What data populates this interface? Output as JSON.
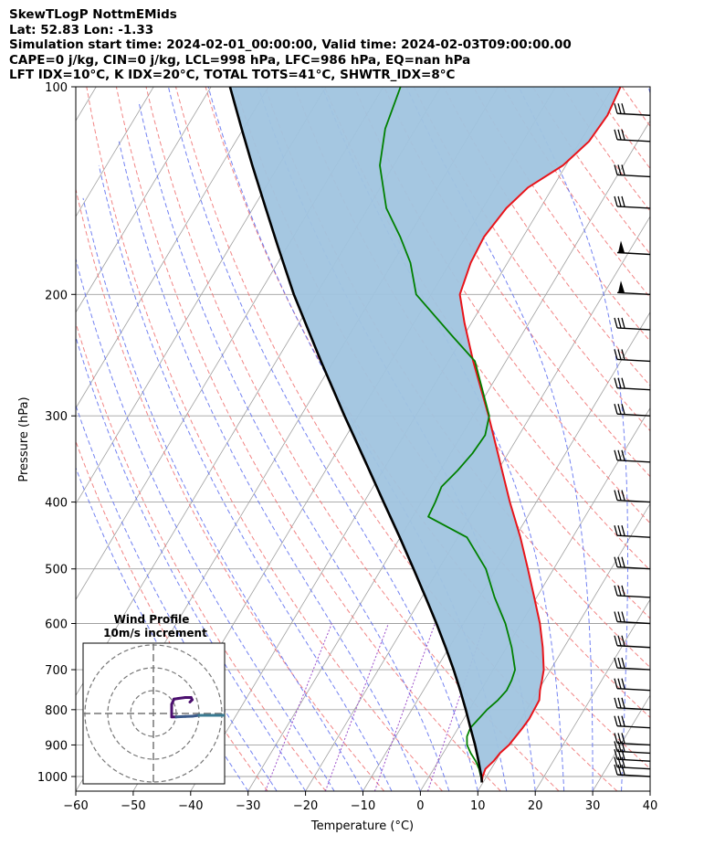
{
  "header": {
    "line1": "SkewTLogP NottmEMids",
    "line2": "Lat: 52.83   Lon: -1.33",
    "line3": "Simulation start time: 2024-02-01_00:00:00, Valid time: 2024-02-03T09:00:00.00",
    "line4": "CAPE=0 j/kg, CIN=0 j/kg, LCL=998 hPa, LFC=986 hPa, EQ=nan hPa",
    "line5": "LFT IDX=10°C, K IDX=20°C, TOTAL TOTS=41°C, SHWTR_IDX=8°C"
  },
  "colors": {
    "temperature": "#e8141a",
    "dewpoint": "#008000",
    "parcel": "#000000",
    "cape_fill": "#a0c4df",
    "dry_adiabat": "#f07070",
    "moist_adiabat": "#5a6cf0",
    "mixing_ratio": "#9b4dca",
    "isotherm": "#a0a0a0",
    "hodograph": "#4b0f6e"
  },
  "chart_data": [
    {
      "type": "line",
      "name": "skew-t",
      "xlabel": "Temperature (°C)",
      "ylabel": "Pressure (hPa)",
      "xlim": [
        -60,
        40
      ],
      "ylim": [
        1050,
        100
      ],
      "y_scale": "log",
      "x_ticks": [
        -60,
        -50,
        -40,
        -30,
        -20,
        -10,
        0,
        10,
        20,
        30,
        40
      ],
      "x_tick_labels": [
        "−60",
        "−50",
        "−40",
        "−30",
        "−20",
        "−10",
        "0",
        "10",
        "20",
        "30",
        "40"
      ],
      "y_ticks": [
        100,
        200,
        300,
        400,
        500,
        600,
        700,
        800,
        900,
        1000
      ],
      "grid": true,
      "series": [
        {
          "key": "temperature",
          "points": [
            [
              1020,
              9.8
            ],
            [
              1000,
              9.3
            ],
            [
              975,
              9.0
            ],
            [
              950,
              9.6
            ],
            [
              925,
              9.9
            ],
            [
              900,
              10.6
            ],
            [
              875,
              10.9
            ],
            [
              850,
              11.2
            ],
            [
              825,
              11.4
            ],
            [
              800,
              11.3
            ],
            [
              775,
              11.2
            ],
            [
              750,
              10.3
            ],
            [
              725,
              9.6
            ],
            [
              700,
              8.8
            ],
            [
              650,
              6.3
            ],
            [
              600,
              3.3
            ],
            [
              550,
              -0.4
            ],
            [
              500,
              -4.5
            ],
            [
              450,
              -9.1
            ],
            [
              400,
              -14.6
            ],
            [
              350,
              -20.5
            ],
            [
              300,
              -27.3
            ],
            [
              250,
              -35.7
            ],
            [
              220,
              -41.2
            ],
            [
              200,
              -45.0
            ],
            [
              180,
              -46.4
            ],
            [
              165,
              -46.8
            ],
            [
              150,
              -45.9
            ],
            [
              140,
              -44.3
            ],
            [
              130,
              -40.5
            ],
            [
              120,
              -38.5
            ],
            [
              110,
              -38.0
            ],
            [
              100,
              -38.7
            ]
          ]
        },
        {
          "key": "dewpoint",
          "points": [
            [
              1000,
              9.0
            ],
            [
              975,
              7.9
            ],
            [
              950,
              6.5
            ],
            [
              925,
              4.8
            ],
            [
              900,
              3.3
            ],
            [
              875,
              2.4
            ],
            [
              850,
              2.1
            ],
            [
              825,
              2.6
            ],
            [
              800,
              3.1
            ],
            [
              775,
              4.0
            ],
            [
              750,
              4.5
            ],
            [
              725,
              4.3
            ],
            [
              700,
              3.8
            ],
            [
              650,
              0.9
            ],
            [
              600,
              -2.7
            ],
            [
              550,
              -7.3
            ],
            [
              500,
              -11.8
            ],
            [
              450,
              -18.4
            ],
            [
              420,
              -27.3
            ],
            [
              400,
              -27.6
            ],
            [
              380,
              -28.1
            ],
            [
              360,
              -27.0
            ],
            [
              340,
              -26.2
            ],
            [
              320,
              -25.9
            ],
            [
              300,
              -27.2
            ],
            [
              250,
              -35.4
            ],
            [
              230,
              -41.9
            ],
            [
              200,
              -52.6
            ],
            [
              180,
              -56.9
            ],
            [
              165,
              -61.4
            ],
            [
              150,
              -66.8
            ],
            [
              130,
              -72.4
            ],
            [
              115,
              -75.3
            ],
            [
              100,
              -77.0
            ]
          ]
        },
        {
          "key": "parcel",
          "points": [
            [
              1020,
              9.8
            ],
            [
              1000,
              9.1
            ],
            [
              950,
              7.0
            ],
            [
              900,
              4.7
            ],
            [
              850,
              2.1
            ],
            [
              800,
              -0.6
            ],
            [
              750,
              -3.6
            ],
            [
              700,
              -6.9
            ],
            [
              650,
              -10.6
            ],
            [
              600,
              -14.7
            ],
            [
              550,
              -19.3
            ],
            [
              500,
              -24.4
            ],
            [
              450,
              -30.1
            ],
            [
              400,
              -36.6
            ],
            [
              350,
              -43.9
            ],
            [
              300,
              -52.4
            ],
            [
              250,
              -62.2
            ],
            [
              200,
              -73.9
            ],
            [
              170,
              -81.8
            ],
            [
              150,
              -87.8
            ],
            [
              130,
              -94.6
            ],
            [
              115,
              -100.3
            ],
            [
              100,
              -106.7
            ]
          ]
        }
      ],
      "wind_barbs_hpa": [
        1000,
        975,
        950,
        925,
        900,
        850,
        800,
        750,
        700,
        650,
        600,
        550,
        500,
        450,
        400,
        350,
        300,
        275,
        250,
        225,
        200,
        175,
        150,
        135,
        120,
        110
      ]
    },
    {
      "type": "line",
      "name": "hodograph",
      "title": "Wind Profile",
      "subtitle": "10m/s increment",
      "ring_step_ms": 10,
      "rings": 3,
      "points": [
        [
          -16,
          5
        ],
        [
          -17,
          6
        ],
        [
          -16.5,
          7
        ],
        [
          -14,
          7
        ],
        [
          -11,
          6.6
        ],
        [
          -9,
          6.3
        ],
        [
          -8,
          4
        ],
        [
          -8,
          1
        ],
        [
          -8,
          -1.5
        ],
        [
          -10,
          -1.5
        ],
        [
          -14,
          -1.3
        ],
        [
          -17,
          -1.2
        ],
        [
          -20,
          -0.8
        ],
        [
          -25,
          -0.8
        ],
        [
          -30,
          -0.8
        ],
        [
          -34,
          -0.8
        ]
      ]
    }
  ]
}
